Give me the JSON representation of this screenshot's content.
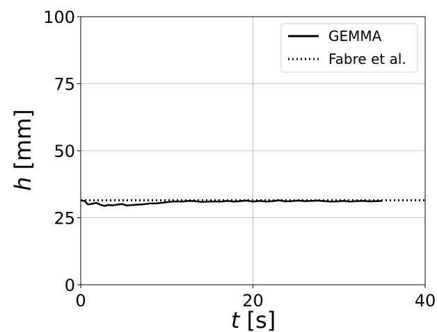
{
  "chart_data": {
    "type": "line",
    "title": "",
    "xlabel": "t [s]",
    "xlabel_var": "t",
    "xlabel_unit": "[s]",
    "ylabel": "h [mm]",
    "ylabel_var": "h",
    "ylabel_unit": "[mm]",
    "xlim": [
      0,
      40
    ],
    "ylim": [
      0,
      100
    ],
    "xticks": [
      0,
      20,
      40
    ],
    "yticks": [
      0,
      25,
      50,
      75,
      100
    ],
    "grid": true,
    "legend_position": "top-right",
    "series": [
      {
        "name": "GEMMA",
        "style": "solid",
        "color": "#000000",
        "x": [
          0,
          0.5,
          0.8,
          1.2,
          1.8,
          2.3,
          2.8,
          3.2,
          3.7,
          4.2,
          4.8,
          5.3,
          5.8,
          6.5,
          7.2,
          8.0,
          8.8,
          9.5,
          10.2,
          11.0,
          11.8,
          12.5,
          13.3,
          14.0,
          14.8,
          15.5,
          16.3,
          17.0,
          17.8,
          18.5,
          19.3,
          20.0,
          20.8,
          21.5,
          22.3,
          23.0,
          23.8,
          24.5,
          25.3,
          26.0,
          26.8,
          27.5,
          28.3,
          29.0,
          29.8,
          30.5,
          31.3,
          32.0,
          32.8,
          33.5,
          34.3,
          35.0
        ],
        "values": [
          31.5,
          31.2,
          30.0,
          30.1,
          30.6,
          29.8,
          29.4,
          29.8,
          29.6,
          29.9,
          30.1,
          29.6,
          29.7,
          29.9,
          30.0,
          30.3,
          30.4,
          30.6,
          30.9,
          31.1,
          31.0,
          31.3,
          31.2,
          30.9,
          31.0,
          31.1,
          31.0,
          31.3,
          31.0,
          31.2,
          31.4,
          31.0,
          31.3,
          31.0,
          31.2,
          31.5,
          31.1,
          31.2,
          31.4,
          31.2,
          31.3,
          31.4,
          31.2,
          31.0,
          31.1,
          31.3,
          31.0,
          31.2,
          31.3,
          31.1,
          31.2,
          31.3
        ]
      },
      {
        "name": "Fabre et al.",
        "style": "dotted",
        "color": "#000000",
        "x": [
          0,
          40
        ],
        "values": [
          31.5,
          31.5
        ]
      }
    ]
  }
}
